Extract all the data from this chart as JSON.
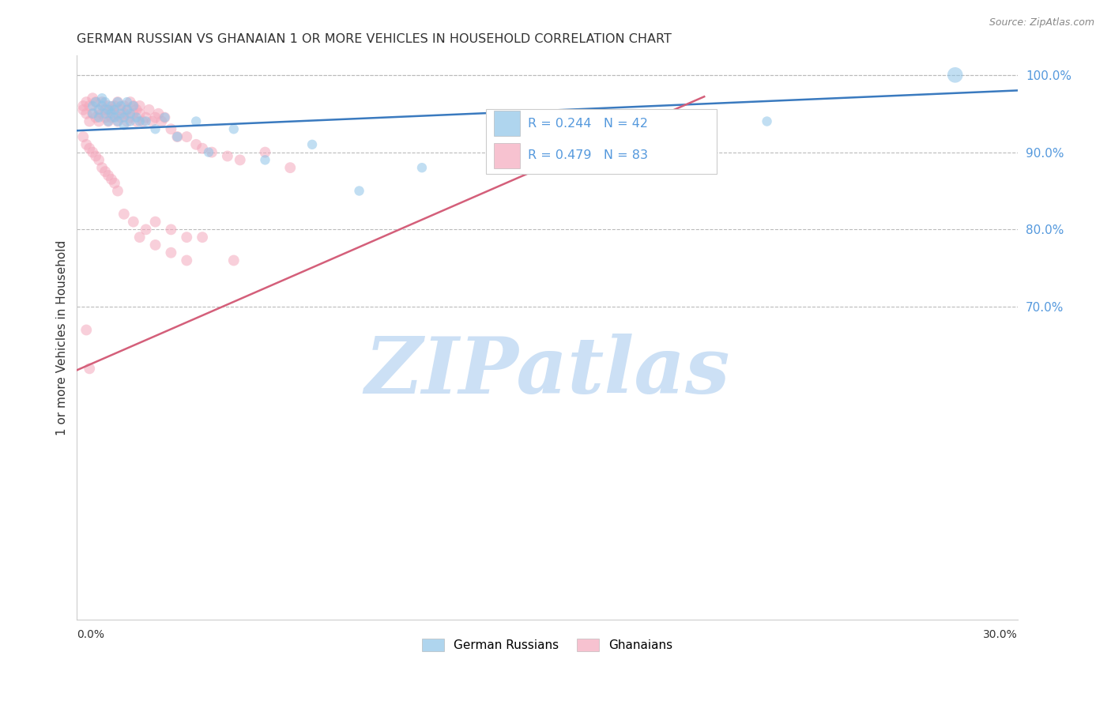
{
  "title": "GERMAN RUSSIAN VS GHANAIAN 1 OR MORE VEHICLES IN HOUSEHOLD CORRELATION CHART",
  "source": "Source: ZipAtlas.com",
  "ylabel": "1 or more Vehicles in Household",
  "right_yticks": [
    "100.0%",
    "90.0%",
    "80.0%",
    "70.0%"
  ],
  "right_ytick_vals": [
    1.0,
    0.9,
    0.8,
    0.7
  ],
  "xlim": [
    0.0,
    0.3
  ],
  "ylim": [
    0.295,
    1.025
  ],
  "blue_R": 0.244,
  "blue_N": 42,
  "pink_R": 0.479,
  "pink_N": 83,
  "watermark": "ZIPatlas",
  "legend_label_blue": "German Russians",
  "legend_label_pink": "Ghanaians",
  "blue_color": "#8ec4e8",
  "pink_color": "#f4a8bc",
  "blue_line_color": "#3a7abf",
  "pink_line_color": "#d45f7a",
  "title_color": "#333333",
  "right_axis_color": "#5599dd",
  "watermark_color": "#cce0f5",
  "blue_line_x": [
    0.0,
    0.3
  ],
  "blue_line_y": [
    0.928,
    0.98
  ],
  "pink_line_x": [
    0.0,
    0.2
  ],
  "pink_line_y": [
    0.618,
    0.972
  ],
  "blue_scatter_x": [
    0.005,
    0.005,
    0.006,
    0.007,
    0.007,
    0.008,
    0.008,
    0.009,
    0.009,
    0.01,
    0.01,
    0.011,
    0.011,
    0.012,
    0.012,
    0.013,
    0.013,
    0.014,
    0.014,
    0.015,
    0.015,
    0.016,
    0.016,
    0.017,
    0.017,
    0.018,
    0.019,
    0.02,
    0.022,
    0.025,
    0.028,
    0.032,
    0.038,
    0.042,
    0.05,
    0.06,
    0.075,
    0.09,
    0.11,
    0.135,
    0.22,
    0.28
  ],
  "blue_scatter_y": [
    0.96,
    0.95,
    0.965,
    0.955,
    0.945,
    0.96,
    0.97,
    0.95,
    0.965,
    0.955,
    0.94,
    0.96,
    0.95,
    0.955,
    0.945,
    0.965,
    0.94,
    0.95,
    0.96,
    0.945,
    0.935,
    0.955,
    0.965,
    0.95,
    0.94,
    0.96,
    0.945,
    0.94,
    0.94,
    0.93,
    0.945,
    0.92,
    0.94,
    0.9,
    0.93,
    0.89,
    0.91,
    0.85,
    0.88,
    0.88,
    0.94,
    1.0
  ],
  "blue_scatter_sizes": [
    80,
    80,
    80,
    80,
    80,
    80,
    80,
    80,
    80,
    80,
    80,
    80,
    80,
    80,
    80,
    80,
    80,
    80,
    80,
    80,
    80,
    80,
    80,
    80,
    80,
    80,
    80,
    80,
    80,
    80,
    80,
    80,
    80,
    80,
    80,
    80,
    80,
    80,
    80,
    80,
    80,
    200
  ],
  "pink_scatter_x": [
    0.002,
    0.002,
    0.003,
    0.003,
    0.004,
    0.004,
    0.005,
    0.005,
    0.006,
    0.006,
    0.007,
    0.007,
    0.008,
    0.008,
    0.009,
    0.009,
    0.01,
    0.01,
    0.011,
    0.011,
    0.012,
    0.012,
    0.013,
    0.013,
    0.014,
    0.014,
    0.015,
    0.015,
    0.016,
    0.016,
    0.017,
    0.017,
    0.018,
    0.018,
    0.019,
    0.019,
    0.02,
    0.02,
    0.021,
    0.022,
    0.023,
    0.024,
    0.025,
    0.026,
    0.027,
    0.028,
    0.03,
    0.032,
    0.035,
    0.038,
    0.04,
    0.043,
    0.048,
    0.052,
    0.06,
    0.068,
    0.002,
    0.003,
    0.004,
    0.005,
    0.006,
    0.007,
    0.008,
    0.009,
    0.01,
    0.011,
    0.012,
    0.013,
    0.015,
    0.018,
    0.022,
    0.025,
    0.03,
    0.035,
    0.02,
    0.025,
    0.03,
    0.035,
    0.04,
    0.05,
    0.003,
    0.004
  ],
  "pink_scatter_y": [
    0.96,
    0.955,
    0.965,
    0.95,
    0.96,
    0.94,
    0.97,
    0.95,
    0.965,
    0.945,
    0.955,
    0.94,
    0.965,
    0.95,
    0.955,
    0.945,
    0.96,
    0.94,
    0.955,
    0.945,
    0.96,
    0.95,
    0.965,
    0.94,
    0.955,
    0.945,
    0.96,
    0.95,
    0.955,
    0.94,
    0.965,
    0.945,
    0.96,
    0.95,
    0.955,
    0.94,
    0.96,
    0.95,
    0.94,
    0.945,
    0.955,
    0.94,
    0.945,
    0.95,
    0.94,
    0.945,
    0.93,
    0.92,
    0.92,
    0.91,
    0.905,
    0.9,
    0.895,
    0.89,
    0.9,
    0.88,
    0.92,
    0.91,
    0.905,
    0.9,
    0.895,
    0.89,
    0.88,
    0.875,
    0.87,
    0.865,
    0.86,
    0.85,
    0.82,
    0.81,
    0.8,
    0.81,
    0.8,
    0.79,
    0.79,
    0.78,
    0.77,
    0.76,
    0.79,
    0.76,
    0.67,
    0.62
  ]
}
